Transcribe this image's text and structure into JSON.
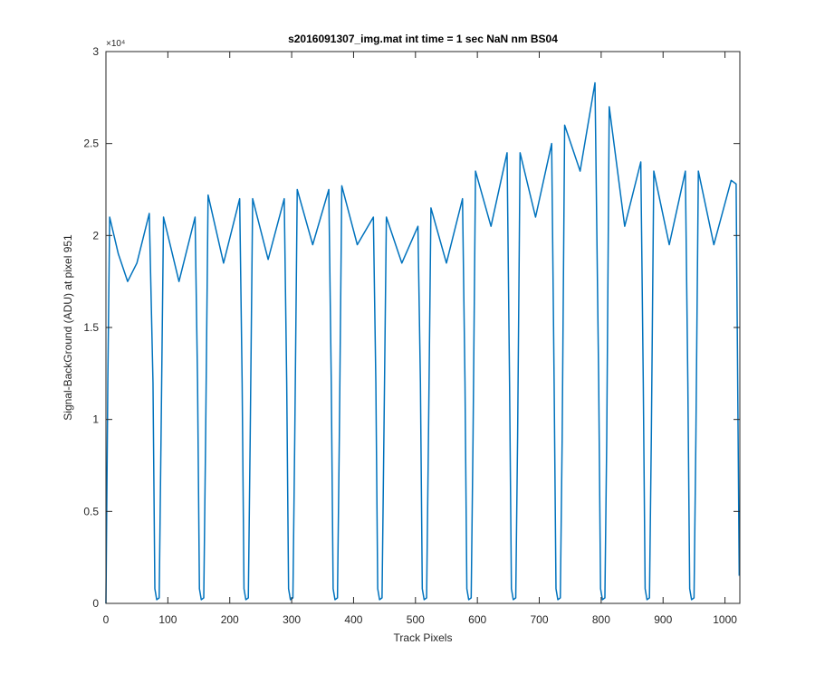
{
  "chart_data": {
    "type": "line",
    "title": "s2016091307_img.mat int time = 1 sec  NaN nm BS04",
    "x_label": "Track Pixels",
    "y_label": "Signal-BackGround (ADU) at pixel 951",
    "y_multiplier": "×10⁴",
    "xlim": [
      0,
      1024
    ],
    "ylim": [
      0,
      3
    ],
    "xticks": [
      0,
      100,
      200,
      300,
      400,
      500,
      600,
      700,
      800,
      900,
      1000
    ],
    "yticks": [
      0,
      0.5,
      1,
      1.5,
      2,
      2.5,
      3
    ],
    "series": [
      {
        "color": "#0072bd",
        "x": [
          0,
          3,
          6,
          20,
          35,
          50,
          70,
          76,
          79,
          82,
          86,
          89,
          93,
          118,
          144,
          148,
          151,
          154,
          158,
          161,
          165,
          190,
          216,
          220,
          223,
          226,
          230,
          233,
          237,
          262,
          288,
          292,
          295,
          298,
          302,
          305,
          309,
          334,
          360,
          364,
          367,
          370,
          374,
          377,
          381,
          406,
          432,
          436,
          439,
          442,
          446,
          449,
          453,
          478,
          504,
          508,
          511,
          514,
          518,
          521,
          525,
          550,
          576,
          580,
          583,
          586,
          590,
          593,
          597,
          622,
          648,
          652,
          655,
          658,
          662,
          665,
          669,
          694,
          720,
          724,
          727,
          730,
          734,
          737,
          741,
          766,
          790,
          796,
          799,
          802,
          806,
          809,
          813,
          838,
          864,
          868,
          871,
          874,
          878,
          881,
          885,
          910,
          936,
          940,
          943,
          946,
          950,
          953,
          957,
          982,
          1010,
          1018,
          1023
        ],
        "values": [
          0,
          1.2,
          2.1,
          1.9,
          1.75,
          1.85,
          2.12,
          1.2,
          0.08,
          0.02,
          0.03,
          0.9,
          2.1,
          1.75,
          2.1,
          1.2,
          0.08,
          0.02,
          0.03,
          0.9,
          2.22,
          1.85,
          2.2,
          1.2,
          0.08,
          0.02,
          0.03,
          0.9,
          2.2,
          1.87,
          2.2,
          1.2,
          0.08,
          0.02,
          0.03,
          0.9,
          2.25,
          1.95,
          2.25,
          1.2,
          0.08,
          0.02,
          0.03,
          0.9,
          2.27,
          1.95,
          2.1,
          1.2,
          0.08,
          0.02,
          0.03,
          0.9,
          2.1,
          1.85,
          2.05,
          1.2,
          0.08,
          0.02,
          0.03,
          0.9,
          2.15,
          1.85,
          2.2,
          1.2,
          0.08,
          0.02,
          0.03,
          0.9,
          2.35,
          2.05,
          2.45,
          1.2,
          0.08,
          0.02,
          0.03,
          0.9,
          2.45,
          2.1,
          2.5,
          1.2,
          0.08,
          0.02,
          0.03,
          0.9,
          2.6,
          2.35,
          2.83,
          1.2,
          0.08,
          0.02,
          0.03,
          0.9,
          2.7,
          2.05,
          2.4,
          1.2,
          0.08,
          0.02,
          0.03,
          0.9,
          2.35,
          1.95,
          2.35,
          1.2,
          0.08,
          0.02,
          0.03,
          0.9,
          2.35,
          1.95,
          2.3,
          2.28,
          0.15
        ]
      }
    ]
  }
}
